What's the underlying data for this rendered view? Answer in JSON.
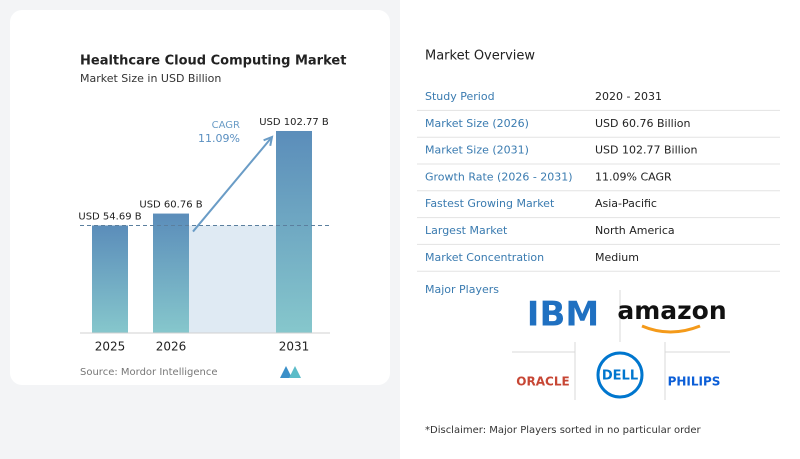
{
  "chart_data": {
    "type": "bar",
    "title": "Healthcare Cloud Computing Market",
    "subtitle": "Market Size in USD Billion",
    "categories": [
      "2025",
      "2026",
      "2031"
    ],
    "values": [
      54.69,
      60.76,
      102.77
    ],
    "value_labels": [
      "USD 54.69 B",
      "USD 60.76 B",
      "USD 102.77 B"
    ],
    "colors": [
      "#5b8dba",
      "#86c7cc"
    ],
    "ylim": [
      0,
      105
    ],
    "annotations": {
      "cagr_label": "CAGR",
      "cagr_value": "11.09%"
    },
    "source": "Source: Mordor Intelligence"
  },
  "overview": {
    "title": "Market Overview",
    "rows": [
      [
        "Study Period",
        "2020 - 2031"
      ],
      [
        "Market Size (2026)",
        "USD 60.76 Billion"
      ],
      [
        "Market Size (2031)",
        "USD 102.77 Billion"
      ],
      [
        "Growth Rate (2026 - 2031)",
        "11.09% CAGR"
      ],
      [
        "Fastest Growing Market",
        "Asia-Pacific"
      ],
      [
        "Largest Market",
        "North America"
      ],
      [
        "Market Concentration",
        "Medium"
      ]
    ]
  },
  "major_players": {
    "title": "Major Players",
    "players": [
      "IBM",
      "amazon",
      "ORACLE",
      "DELL",
      "PHILIPS"
    ]
  },
  "disclaimer": "*Disclaimer: Major Players sorted in no particular order"
}
